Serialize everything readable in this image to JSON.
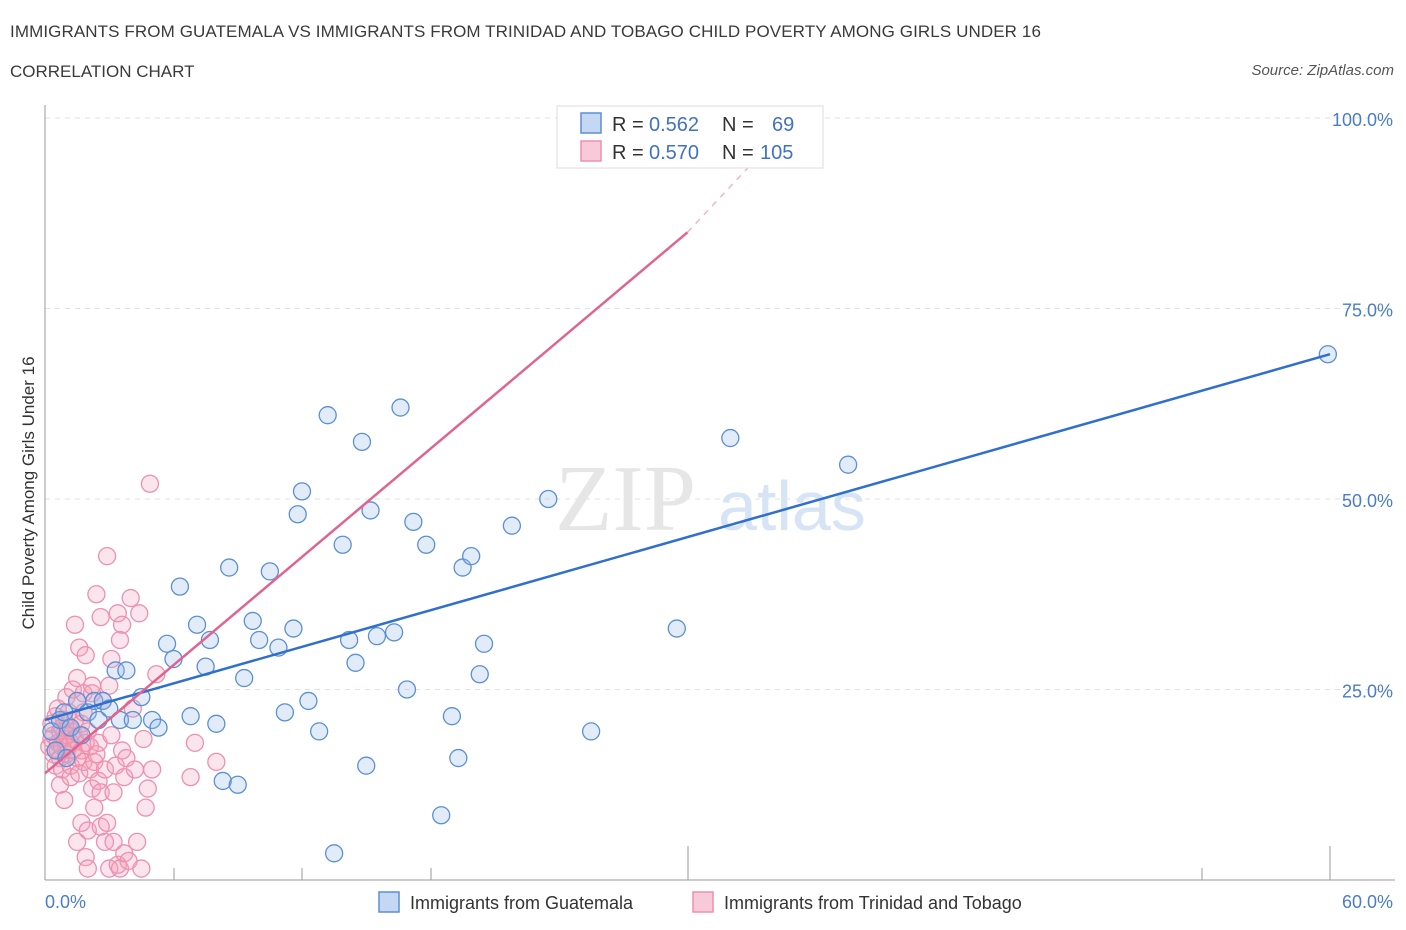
{
  "header": {
    "title": "IMMIGRANTS FROM GUATEMALA VS IMMIGRANTS FROM TRINIDAD AND TOBAGO CHILD POVERTY AMONG GIRLS UNDER 16",
    "subtitle": "CORRELATION CHART",
    "source": "Source: ZipAtlas.com"
  },
  "watermark": {
    "zip": "ZIP",
    "atlas": "atlas"
  },
  "chart_data": {
    "type": "scatter",
    "title": "IMMIGRANTS FROM GUATEMALA VS IMMIGRANTS FROM TRINIDAD AND TOBAGO CHILD POVERTY AMONG GIRLS UNDER 16",
    "xlabel": "",
    "ylabel": "Child Poverty Among Girls Under 16",
    "xlim": [
      0,
      60
    ],
    "ylim": [
      0,
      100
    ],
    "x_tick_labels": [
      "0.0%",
      "60.0%"
    ],
    "y_ticks": [
      25,
      50,
      75,
      100
    ],
    "y_tick_labels": [
      "25.0%",
      "50.0%",
      "75.0%",
      "100.0%"
    ],
    "grid": true,
    "legend_position": "top-center",
    "legend_stats": [
      {
        "r_label": "R =",
        "r_value": "0.562",
        "n_label": "N =",
        "n_value": "69"
      },
      {
        "r_label": "R =",
        "r_value": "0.570",
        "n_label": "N =",
        "n_value": "105"
      }
    ],
    "colors": {
      "guatemala": "#5b8fd6",
      "guatemala_line": "#2f6fce",
      "trinidad": "#ef8fae",
      "trinidad_line": "#e0648f"
    },
    "series": [
      {
        "name": "Immigrants from Guatemala",
        "trend": {
          "x0": 0,
          "y0": 21.0,
          "x1": 60,
          "y1": 69.0
        },
        "points": [
          [
            0.3,
            19.5
          ],
          [
            0.5,
            17
          ],
          [
            0.7,
            21
          ],
          [
            0.9,
            22
          ],
          [
            1.0,
            16
          ],
          [
            1.2,
            20
          ],
          [
            1.5,
            23.5
          ],
          [
            1.7,
            19
          ],
          [
            2.0,
            22
          ],
          [
            2.3,
            23.5
          ],
          [
            2.5,
            21
          ],
          [
            2.7,
            23.5
          ],
          [
            3.0,
            22.5
          ],
          [
            3.3,
            27.5
          ],
          [
            3.5,
            21
          ],
          [
            3.8,
            27.5
          ],
          [
            4.1,
            21
          ],
          [
            4.5,
            24
          ],
          [
            5.0,
            21
          ],
          [
            5.3,
            20
          ],
          [
            5.7,
            31
          ],
          [
            6.0,
            29
          ],
          [
            6.3,
            38.5
          ],
          [
            6.8,
            21.5
          ],
          [
            7.1,
            33.5
          ],
          [
            7.5,
            28
          ],
          [
            7.7,
            31.5
          ],
          [
            8.0,
            20.5
          ],
          [
            8.3,
            13
          ],
          [
            8.6,
            41
          ],
          [
            9.0,
            12.5
          ],
          [
            9.3,
            26.5
          ],
          [
            9.7,
            34
          ],
          [
            10.0,
            31.5
          ],
          [
            10.5,
            40.5
          ],
          [
            10.9,
            30.5
          ],
          [
            11.2,
            22
          ],
          [
            11.6,
            33
          ],
          [
            11.8,
            48
          ],
          [
            12.0,
            51
          ],
          [
            12.3,
            23.5
          ],
          [
            12.8,
            19.5
          ],
          [
            13.2,
            61
          ],
          [
            13.5,
            3.5
          ],
          [
            13.9,
            44
          ],
          [
            14.2,
            31.5
          ],
          [
            14.5,
            28.5
          ],
          [
            14.8,
            57.5
          ],
          [
            15.0,
            15
          ],
          [
            15.2,
            48.5
          ],
          [
            15.5,
            32
          ],
          [
            16.3,
            32.5
          ],
          [
            16.6,
            62
          ],
          [
            16.9,
            25
          ],
          [
            17.2,
            47
          ],
          [
            17.8,
            44
          ],
          [
            18.5,
            8.5
          ],
          [
            19.0,
            21.5
          ],
          [
            19.3,
            16
          ],
          [
            19.5,
            41
          ],
          [
            19.9,
            42.5
          ],
          [
            20.3,
            27
          ],
          [
            20.5,
            31
          ],
          [
            21.8,
            46.5
          ],
          [
            23.5,
            50
          ],
          [
            25.5,
            19.5
          ],
          [
            29.5,
            33
          ],
          [
            32.0,
            58
          ],
          [
            37.5,
            54.5
          ],
          [
            59.9,
            69
          ]
        ]
      },
      {
        "name": "Immigrants from Trinidad and Tobago",
        "trend": {
          "x0": 0,
          "y0": 14.0,
          "x1": 30,
          "y1": 85.0,
          "dash_to_x": 35,
          "dash_to_y": 100.0
        },
        "points": [
          [
            0.2,
            17.5
          ],
          [
            0.3,
            18.5
          ],
          [
            0.3,
            20.5
          ],
          [
            0.4,
            16.5
          ],
          [
            0.4,
            19
          ],
          [
            0.5,
            15
          ],
          [
            0.5,
            21.5
          ],
          [
            0.6,
            17
          ],
          [
            0.6,
            18
          ],
          [
            0.6,
            22.5
          ],
          [
            0.7,
            16
          ],
          [
            0.7,
            19.5
          ],
          [
            0.7,
            12.5
          ],
          [
            0.8,
            20
          ],
          [
            0.8,
            17.5
          ],
          [
            0.8,
            14.5
          ],
          [
            0.9,
            18.5
          ],
          [
            0.9,
            21
          ],
          [
            0.9,
            10.5
          ],
          [
            1.0,
            19
          ],
          [
            1.0,
            16.5
          ],
          [
            1.0,
            24
          ],
          [
            1.1,
            17.5
          ],
          [
            1.1,
            20
          ],
          [
            1.1,
            22
          ],
          [
            1.2,
            18
          ],
          [
            1.2,
            15
          ],
          [
            1.2,
            13.5
          ],
          [
            1.3,
            19.5
          ],
          [
            1.3,
            25
          ],
          [
            1.3,
            17
          ],
          [
            1.4,
            21
          ],
          [
            1.4,
            18.5
          ],
          [
            1.4,
            33.5
          ],
          [
            1.5,
            16
          ],
          [
            1.5,
            26.5
          ],
          [
            1.5,
            23.5
          ],
          [
            1.5,
            5
          ],
          [
            1.6,
            19
          ],
          [
            1.6,
            14
          ],
          [
            1.6,
            30.5
          ],
          [
            1.7,
            20.5
          ],
          [
            1.7,
            17
          ],
          [
            1.7,
            7.5
          ],
          [
            1.8,
            24.5
          ],
          [
            1.8,
            22
          ],
          [
            1.8,
            15.5
          ],
          [
            1.9,
            18
          ],
          [
            1.9,
            29.5
          ],
          [
            1.9,
            3
          ],
          [
            2.0,
            19.5
          ],
          [
            2.0,
            6.5
          ],
          [
            2.0,
            1.5
          ],
          [
            2.1,
            14.5
          ],
          [
            2.1,
            17.5
          ],
          [
            2.2,
            24.5
          ],
          [
            2.2,
            12
          ],
          [
            2.2,
            25.5
          ],
          [
            2.3,
            15.5
          ],
          [
            2.3,
            9.5
          ],
          [
            2.4,
            16.5
          ],
          [
            2.4,
            37.5
          ],
          [
            2.5,
            18
          ],
          [
            2.5,
            13
          ],
          [
            2.6,
            11.5
          ],
          [
            2.6,
            34.5
          ],
          [
            2.6,
            7
          ],
          [
            2.7,
            23.5
          ],
          [
            2.8,
            5
          ],
          [
            2.8,
            14.5
          ],
          [
            2.9,
            7.5
          ],
          [
            2.9,
            42.5
          ],
          [
            3.0,
            25.5
          ],
          [
            3.0,
            1.5
          ],
          [
            3.1,
            19
          ],
          [
            3.1,
            29
          ],
          [
            3.2,
            11.5
          ],
          [
            3.2,
            5
          ],
          [
            3.3,
            15
          ],
          [
            3.4,
            35
          ],
          [
            3.4,
            2
          ],
          [
            3.5,
            31.5
          ],
          [
            3.5,
            1.5
          ],
          [
            3.6,
            17
          ],
          [
            3.6,
            33.5
          ],
          [
            3.7,
            13.5
          ],
          [
            3.7,
            3.5
          ],
          [
            3.8,
            16
          ],
          [
            3.9,
            2.5
          ],
          [
            4.0,
            37
          ],
          [
            4.1,
            22.5
          ],
          [
            4.2,
            14.5
          ],
          [
            4.3,
            5
          ],
          [
            4.4,
            35
          ],
          [
            4.5,
            1.5
          ],
          [
            4.6,
            18.5
          ],
          [
            4.7,
            9.5
          ],
          [
            4.8,
            12
          ],
          [
            4.9,
            52
          ],
          [
            5.0,
            14.5
          ],
          [
            5.2,
            27
          ],
          [
            6.8,
            13.5
          ],
          [
            7.0,
            18
          ],
          [
            8.0,
            15.5
          ],
          [
            28.0,
            99
          ]
        ]
      }
    ]
  },
  "legend": {
    "bottom": [
      {
        "label": "Immigrants from Guatemala"
      },
      {
        "label": "Immigrants from Trinidad and Tobago"
      }
    ]
  }
}
